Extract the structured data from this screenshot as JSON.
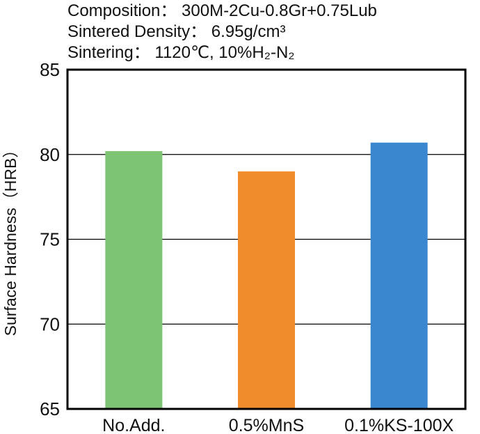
{
  "chart_data": {
    "type": "bar",
    "annotations": [
      "Composition： 300M-2Cu-0.8Gr+0.75Lub",
      "Sintered Density： 6.95g/cm³",
      "Sintering： 1120℃, 10%H₂-N₂"
    ],
    "categories": [
      "No.Add.",
      "0.5%MnS",
      "0.1%KS-100X"
    ],
    "values": [
      80.2,
      79.0,
      80.7
    ],
    "colors": [
      "#7dc474",
      "#f08c2c",
      "#3a87cf"
    ],
    "ylabel": "Surface Hardness（HRB）",
    "xlabel": "",
    "ylim": [
      65,
      85
    ],
    "yticks": [
      65,
      70,
      75,
      80,
      85
    ],
    "ytick_labels": [
      "65",
      "70",
      "75",
      "80",
      "85"
    ],
    "grid": true,
    "legend": "none"
  }
}
